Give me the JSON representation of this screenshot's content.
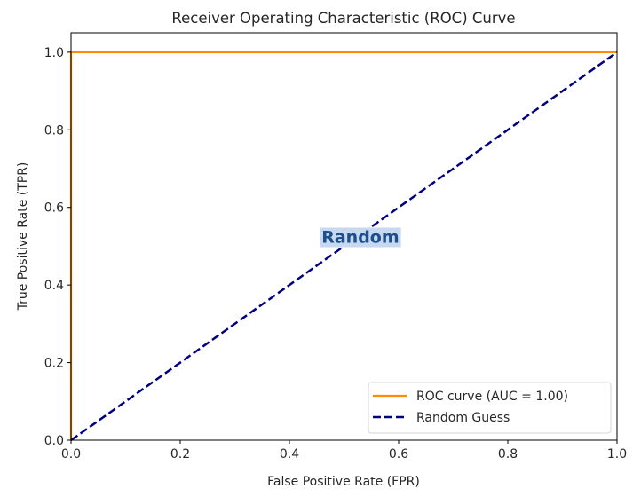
{
  "chart_data": {
    "type": "line",
    "title": "Receiver Operating Characteristic (ROC) Curve",
    "xlabel": "False Positive Rate (FPR)",
    "ylabel": "True Positive Rate (TPR)",
    "xlim": [
      0.0,
      1.0
    ],
    "ylim": [
      0.0,
      1.05
    ],
    "xticks": [
      0.0,
      0.2,
      0.4,
      0.6,
      0.8,
      1.0
    ],
    "xtick_labels": [
      "0.0",
      "0.2",
      "0.4",
      "0.6",
      "0.8",
      "1.0"
    ],
    "yticks": [
      0.0,
      0.2,
      0.4,
      0.6,
      0.8,
      1.0
    ],
    "ytick_labels": [
      "0.0",
      "0.2",
      "0.4",
      "0.6",
      "0.8",
      "1.0"
    ],
    "grid": false,
    "legend_position": "bottom-right",
    "series": [
      {
        "name": "ROC curve (AUC = 1.00)",
        "color": "#ff8c00",
        "style": "solid",
        "x": [
          0.0,
          0.0,
          1.0
        ],
        "y": [
          0.0,
          1.0,
          1.0
        ]
      },
      {
        "name": "Random Guess",
        "color": "#000080",
        "style": "dashed",
        "x": [
          0.0,
          1.0
        ],
        "y": [
          0.0,
          1.0
        ]
      }
    ],
    "annotations": [
      {
        "text": "Random",
        "x": 0.53,
        "y": 0.525,
        "color": "#1f4e8c",
        "background": "#c6d9f1"
      }
    ]
  }
}
